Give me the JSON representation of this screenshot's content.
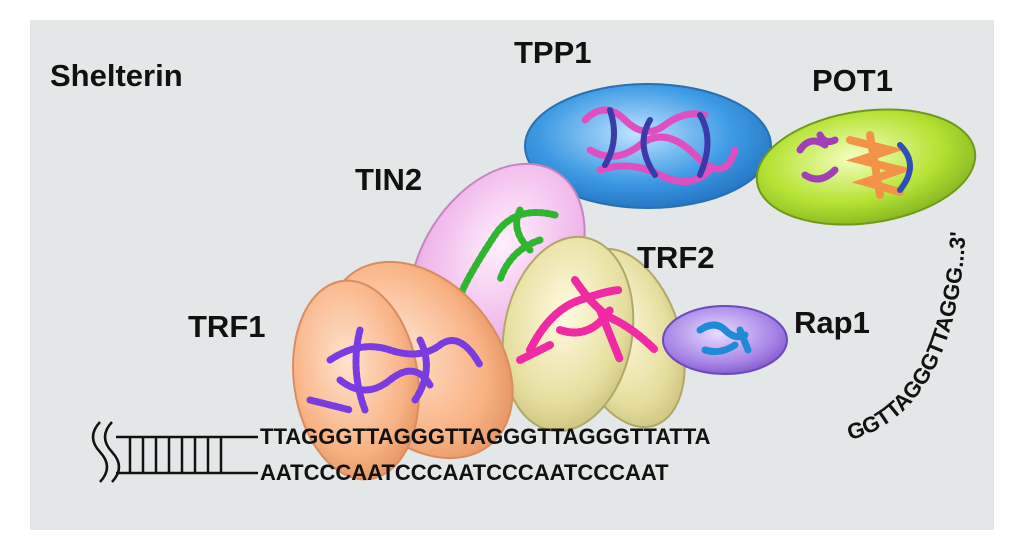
{
  "title": "Shelterin",
  "proteins": {
    "tpp1": "TPP1",
    "pot1": "POT1",
    "tin2": "TIN2",
    "trf2": "TRF2",
    "trf1": "TRF1",
    "rap1": "Rap1"
  },
  "dna": {
    "top_strand": "TTAGGGTTAGGGTTAGGGTTAGGGTTATTA",
    "bottom_strand": "AATCCCAATCCCAATCCCAATCCCAAT",
    "overhang": "GGTTAGGGTTAGGG...3'"
  },
  "colors": {
    "background": "#e4e7e7",
    "tpp1": "#4aa3e6",
    "pot1": "#b9e63a",
    "tin2": "#f1b8ec",
    "trf2": "#e8e2a6",
    "trf1": "#f9b98c",
    "rap1": "#a986e8"
  }
}
